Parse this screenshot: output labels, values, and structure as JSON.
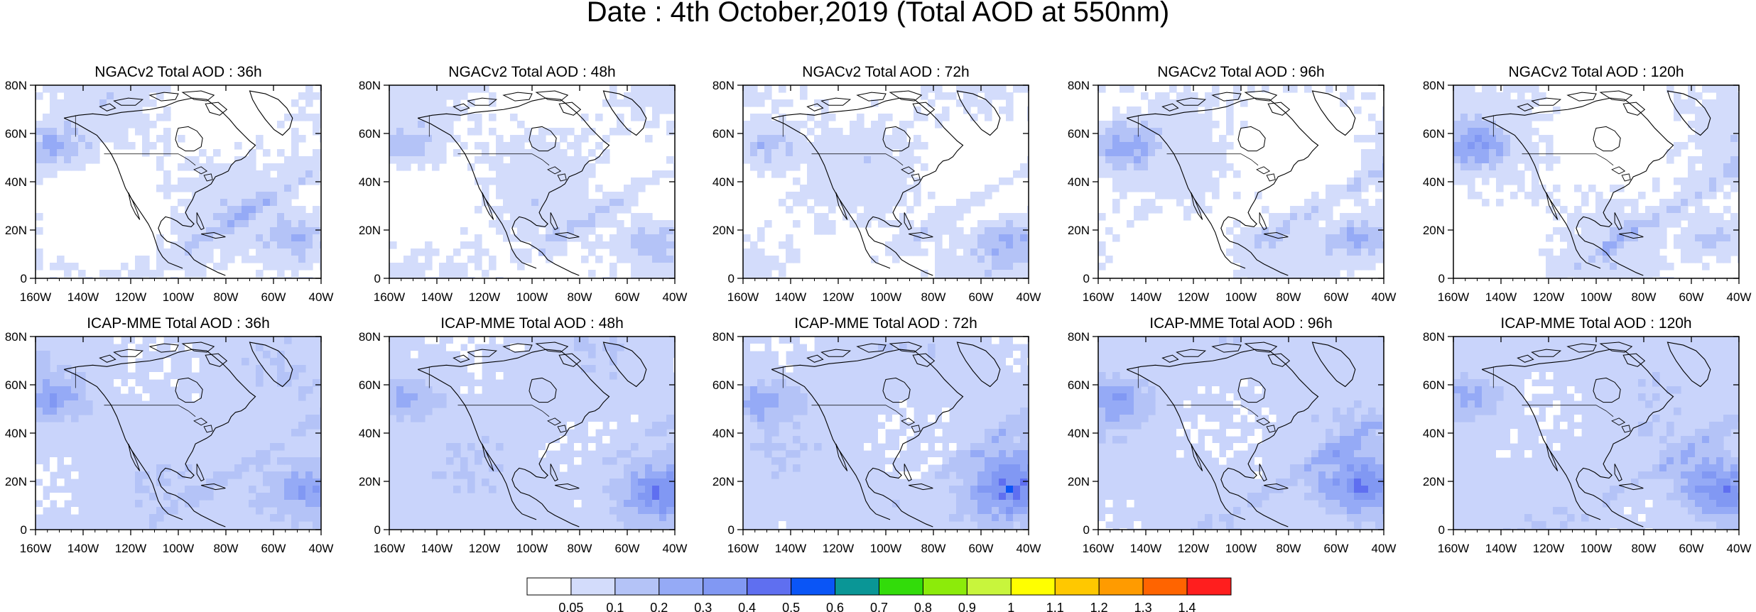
{
  "figure": {
    "title": "Date : 4th October,2019 (Total AOD at 550nm)"
  },
  "axes": {
    "x_ticks": [
      "160W",
      "140W",
      "120W",
      "100W",
      "80W",
      "60W",
      "40W"
    ],
    "y_ticks": [
      "0",
      "20N",
      "40N",
      "60N",
      "80N"
    ]
  },
  "panels": [
    {
      "title": "NGACv2 Total AOD : 36h"
    },
    {
      "title": "NGACv2 Total AOD : 48h"
    },
    {
      "title": "NGACv2 Total AOD : 72h"
    },
    {
      "title": "NGACv2 Total AOD : 96h"
    },
    {
      "title": "NGACv2 Total AOD : 120h"
    },
    {
      "title": "ICAP-MME Total AOD : 36h"
    },
    {
      "title": "ICAP-MME Total AOD : 48h"
    },
    {
      "title": "ICAP-MME Total AOD : 72h"
    },
    {
      "title": "ICAP-MME Total AOD : 96h"
    },
    {
      "title": "ICAP-MME Total AOD : 120h"
    }
  ],
  "colorbar": {
    "labels": [
      "0.05",
      "0.1",
      "0.2",
      "0.3",
      "0.4",
      "0.5",
      "0.6",
      "0.7",
      "0.8",
      "0.9",
      "1",
      "1.1",
      "1.2",
      "1.3",
      "1.4"
    ],
    "colors": [
      "#ffffff",
      "#d3dcfb",
      "#b4c3f7",
      "#95aaf6",
      "#8198f3",
      "#5f6ff0",
      "#0a55f6",
      "#0a9696",
      "#32dc0a",
      "#8ceb0a",
      "#c8f53c",
      "#ffff00",
      "#ffc800",
      "#ff9b00",
      "#ff6400",
      "#ff1e1e"
    ]
  }
}
